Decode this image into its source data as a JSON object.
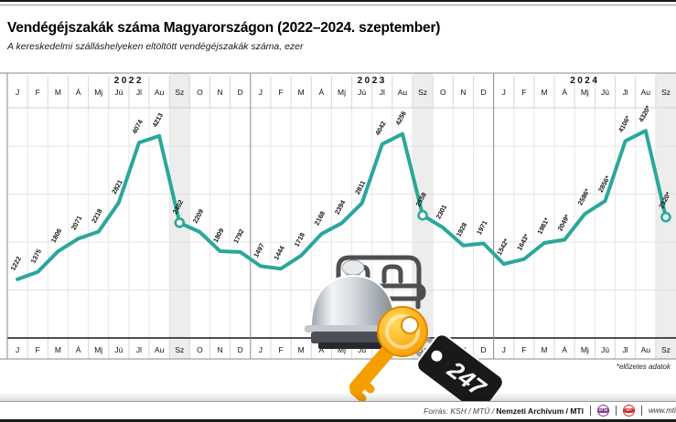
{
  "title": "Vendégéjszakák száma Magyarországon (2022–2024. szeptember)",
  "subtitle": "A kereskedelmi szálláshelyeken eltöltött vendégéjszakák száma, ezer",
  "footnote": "*előzetes adatok",
  "footer": {
    "source_prefix": "Forrás: KSH / MTÜ / ",
    "source_bold": "Nemzeti Archívum / MTI",
    "logo1": "MTVA",
    "logo1_color": "#7b3b8f",
    "logo2": "MTI",
    "logo2_color": "#cf2229",
    "url": "www.mti"
  },
  "decoration": {
    "tag_label": "247"
  },
  "chart_data": {
    "type": "line",
    "title": "Vendégéjszakák száma Magyarországon (2022–2024. szeptember)",
    "ylabel": "vendégéjszakák száma, ezer",
    "ylim": [
      0,
      4950
    ],
    "gridlines": [
      1000,
      2000,
      3000,
      4000
    ],
    "grid": true,
    "line_color": "#2aa79a",
    "band_color": "#ededed",
    "month_labels": [
      "J",
      "F",
      "M",
      "Á",
      "Mj",
      "Jú",
      "Jl",
      "Au",
      "Sz",
      "O",
      "N",
      "D"
    ],
    "highlight_month_index": 8,
    "years": [
      {
        "label": "2022",
        "preliminary": false,
        "values": [
          1222,
          1375,
          1806,
          2071,
          2218,
          2821,
          4074,
          4213,
          2402,
          2209,
          1809,
          1792
        ]
      },
      {
        "label": "2023",
        "preliminary": false,
        "values": [
          1497,
          1444,
          1718,
          2168,
          2394,
          2811,
          4042,
          4256,
          2558,
          2301,
          1928,
          1971
        ]
      },
      {
        "label": "2024",
        "preliminary": true,
        "values": [
          1542,
          1643,
          1981,
          2049,
          2586,
          2856,
          4106,
          4320,
          2520
        ]
      }
    ]
  }
}
